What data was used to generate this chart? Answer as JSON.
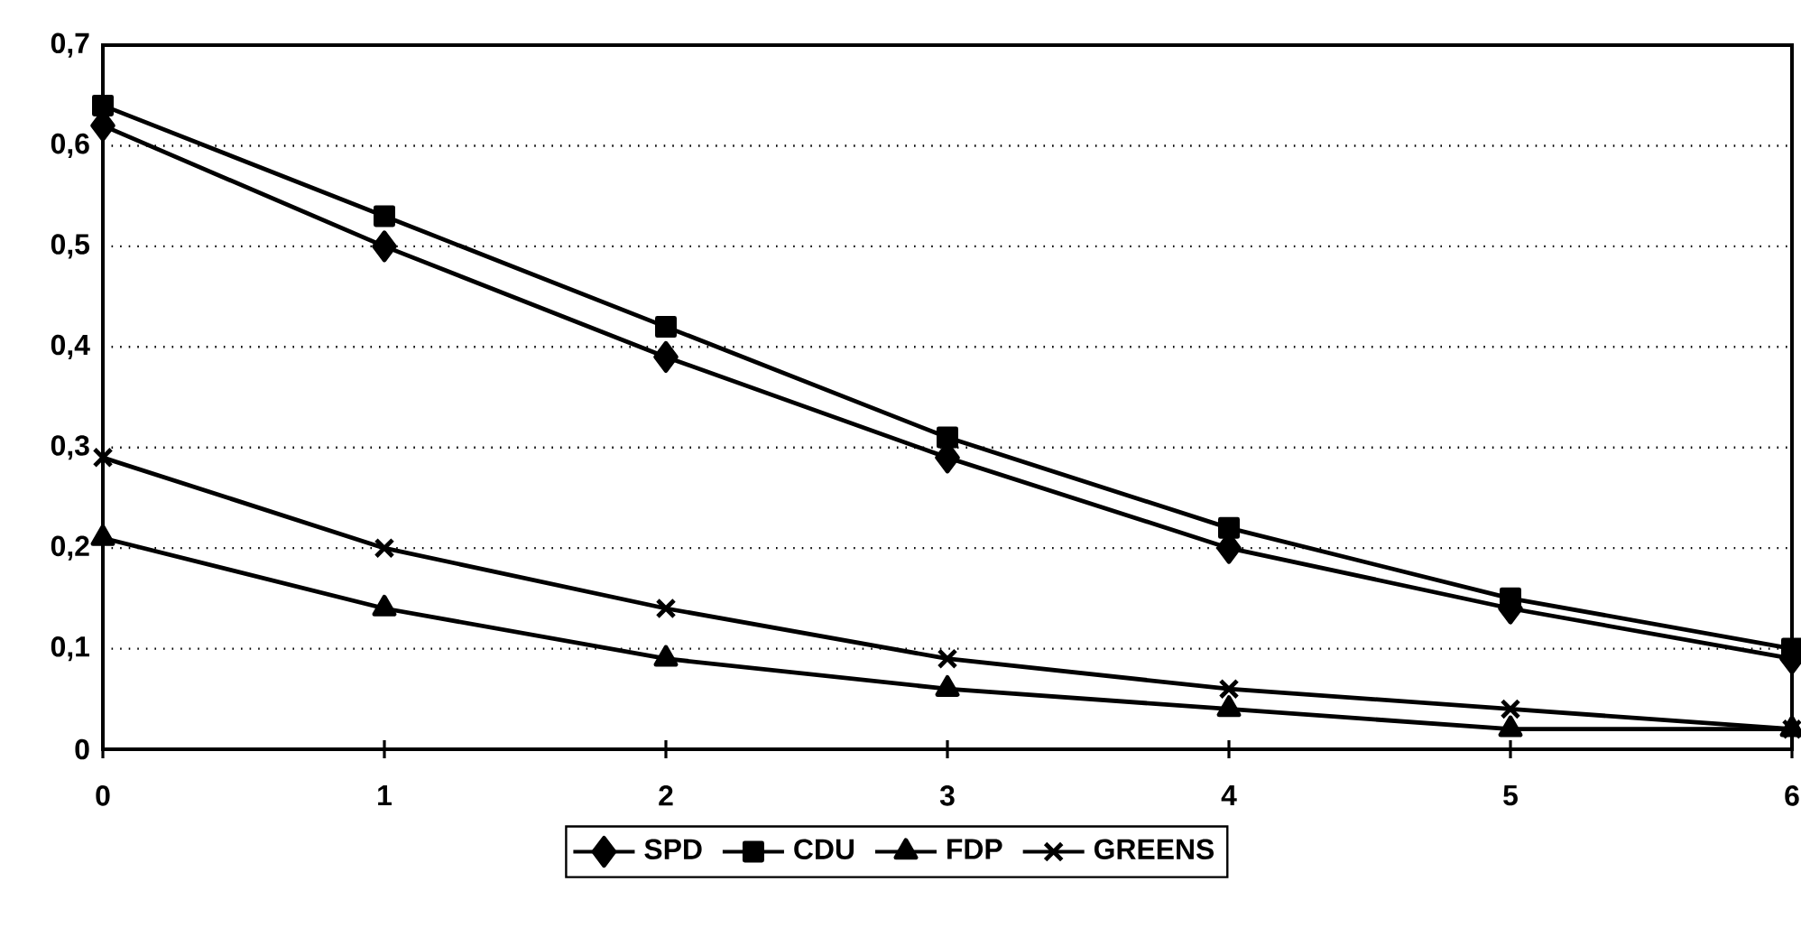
{
  "chart_data": {
    "type": "line",
    "x": [
      0,
      1,
      2,
      3,
      4,
      5,
      6
    ],
    "series": [
      {
        "name": "SPD",
        "color": "#000000",
        "marker": "diamond",
        "values": [
          0.62,
          0.5,
          0.39,
          0.29,
          0.2,
          0.14,
          0.09
        ]
      },
      {
        "name": "CDU",
        "color": "#000000",
        "marker": "square",
        "values": [
          0.64,
          0.53,
          0.42,
          0.31,
          0.22,
          0.15,
          0.1
        ]
      },
      {
        "name": "FDP",
        "color": "#000000",
        "marker": "triangle",
        "values": [
          0.21,
          0.14,
          0.09,
          0.06,
          0.04,
          0.02,
          0.02
        ]
      },
      {
        "name": "GREENS",
        "color": "#000000",
        "marker": "cross",
        "values": [
          0.29,
          0.2,
          0.14,
          0.09,
          0.06,
          0.04,
          0.02
        ]
      }
    ],
    "xlim": [
      0,
      6
    ],
    "xticks": [
      0,
      1,
      2,
      3,
      4,
      5,
      6
    ],
    "ylim": [
      0,
      0.7
    ],
    "yticks": [
      0,
      {
        "value": 0.1,
        "label": "0,1"
      },
      {
        "value": 0.2,
        "label": "0,2"
      },
      {
        "value": 0.3,
        "label": "0,3"
      },
      {
        "value": 0.4,
        "label": "0,4"
      },
      {
        "value": 0.5,
        "label": "0,5"
      },
      {
        "value": 0.6,
        "label": "0,6"
      },
      {
        "value": 0.7,
        "label": "0,7"
      }
    ],
    "grid": "y",
    "legend": "bottom",
    "line_style": "solid"
  }
}
